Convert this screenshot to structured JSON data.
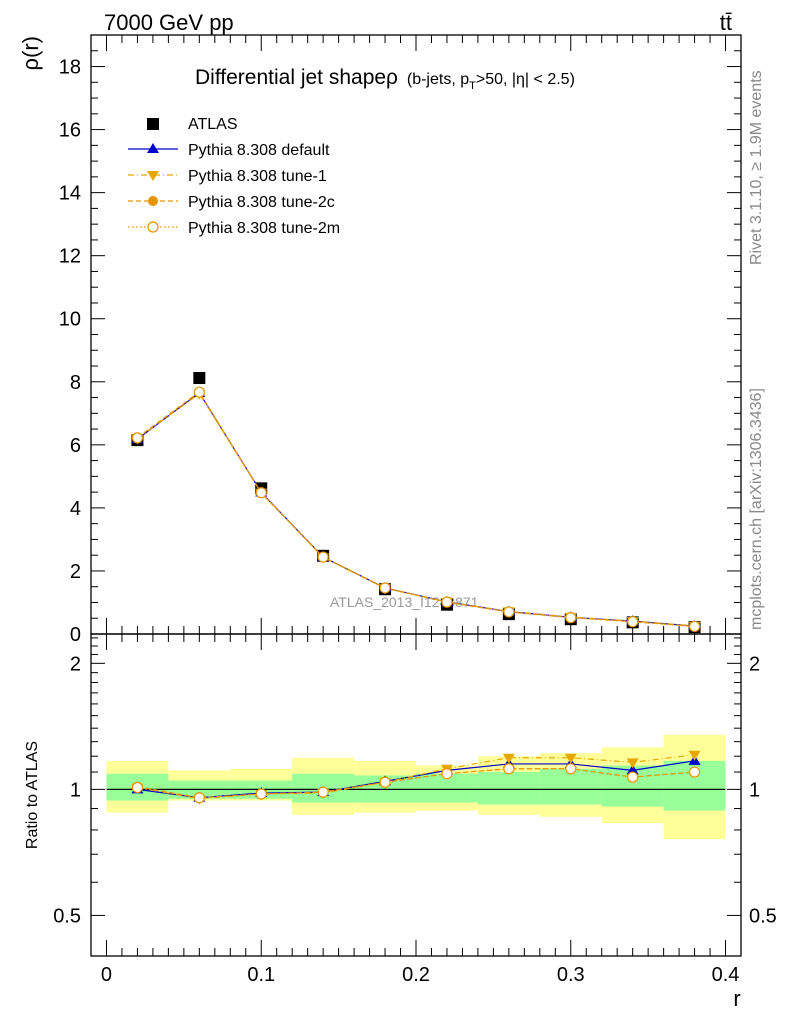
{
  "header": {
    "left": "7000 GeV pp",
    "right": "tt̄"
  },
  "side": {
    "rivet": "Rivet 3.1.10, ≥ 1.9M events",
    "mcplots": "mcplots.cern.ch [arXiv:1306.3436]"
  },
  "chart_data": [
    {
      "type": "scatter",
      "title": "Differential jet shapeρ",
      "title_sub": "(b-jets, p",
      "title_sub_T": "T",
      "title_sub_rest": ">50, |η| < 2.5)",
      "watermark": "ATLAS_2013_I1243871",
      "ylabel": "ρ(r)",
      "xlim": [
        -0.01,
        0.41
      ],
      "ylim": [
        0,
        19
      ],
      "yticks": [
        "0",
        "2",
        "4",
        "6",
        "8",
        "10",
        "12",
        "14",
        "16",
        "18"
      ],
      "x": [
        0.02,
        0.06,
        0.1,
        0.14,
        0.18,
        0.22,
        0.26,
        0.3,
        0.34,
        0.38
      ],
      "legend_position": "top-left",
      "series": [
        {
          "name": "ATLAS",
          "color": "#000000",
          "values": [
            6.15,
            8.12,
            4.62,
            2.48,
            1.42,
            0.93,
            0.63,
            0.47,
            0.37,
            0.22
          ]
        },
        {
          "name": "Pythia 8.308 default",
          "color": "#0000cc",
          "values": [
            6.18,
            7.65,
            4.49,
            2.44,
            1.46,
            1.02,
            0.71,
            0.53,
            0.41,
            0.25
          ]
        },
        {
          "name": "Pythia 8.308 tune-1",
          "color": "#e6a800",
          "values": [
            6.2,
            7.62,
            4.48,
            2.43,
            1.45,
            1.02,
            0.72,
            0.54,
            0.41,
            0.26
          ]
        },
        {
          "name": "Pythia 8.308 tune-2c",
          "color": "#e69500",
          "values": [
            6.23,
            7.68,
            4.47,
            2.44,
            1.46,
            1.01,
            0.7,
            0.52,
            0.39,
            0.24
          ]
        },
        {
          "name": "Pythia 8.308 tune-2m",
          "color": "#e69500",
          "values": [
            6.22,
            7.67,
            4.48,
            2.44,
            1.46,
            1.01,
            0.7,
            0.52,
            0.39,
            0.24
          ]
        }
      ]
    },
    {
      "type": "scatter",
      "ylabel": "Ratio to ATLAS",
      "xlabel": "r",
      "ylog": true,
      "ylim": [
        0.4,
        2.35
      ],
      "yticks": [
        {
          "value": 0.5,
          "label": "0.5"
        },
        {
          "value": 1,
          "label": "1"
        },
        {
          "value": 2,
          "label": "2"
        }
      ],
      "xticks": [
        "0",
        "0.1",
        "0.2",
        "0.3",
        "0.4"
      ],
      "bin_edges": [
        0,
        0.04,
        0.08,
        0.12,
        0.16,
        0.2,
        0.24,
        0.28,
        0.32,
        0.36,
        0.4
      ],
      "band_inner": [
        [
          0.94,
          1.09
        ],
        [
          0.95,
          1.05
        ],
        [
          0.95,
          1.05
        ],
        [
          0.93,
          1.09
        ],
        [
          0.93,
          1.08
        ],
        [
          0.93,
          1.09
        ],
        [
          0.92,
          1.1
        ],
        [
          0.92,
          1.12
        ],
        [
          0.91,
          1.14
        ],
        [
          0.89,
          1.17
        ]
      ],
      "band_outer": [
        [
          0.88,
          1.17
        ],
        [
          0.94,
          1.11
        ],
        [
          0.94,
          1.12
        ],
        [
          0.87,
          1.19
        ],
        [
          0.88,
          1.17
        ],
        [
          0.89,
          1.14
        ],
        [
          0.87,
          1.2
        ],
        [
          0.86,
          1.22
        ],
        [
          0.83,
          1.26
        ],
        [
          0.76,
          1.35
        ]
      ],
      "x": [
        0.02,
        0.06,
        0.1,
        0.14,
        0.18,
        0.22,
        0.26,
        0.3,
        0.34,
        0.38
      ],
      "series": [
        {
          "name": "Pythia 8.308 default",
          "color": "#0000cc",
          "values": [
            1.0,
            0.955,
            0.98,
            0.985,
            1.045,
            1.11,
            1.15,
            1.15,
            1.11,
            1.17
          ]
        },
        {
          "name": "Pythia 8.308 tune-1",
          "color": "#e6a800",
          "values": [
            1.01,
            0.95,
            0.975,
            0.98,
            1.04,
            1.12,
            1.19,
            1.19,
            1.16,
            1.21
          ]
        },
        {
          "name": "Pythia 8.308 tune-2c",
          "color": "#e69500",
          "values": [
            1.015,
            0.955,
            0.975,
            0.985,
            1.04,
            1.09,
            1.12,
            1.12,
            1.07,
            1.1
          ]
        },
        {
          "name": "Pythia 8.308 tune-2m",
          "color": "#e69500",
          "values": [
            1.01,
            0.955,
            0.975,
            0.985,
            1.04,
            1.09,
            1.12,
            1.12,
            1.07,
            1.1
          ]
        }
      ]
    }
  ]
}
